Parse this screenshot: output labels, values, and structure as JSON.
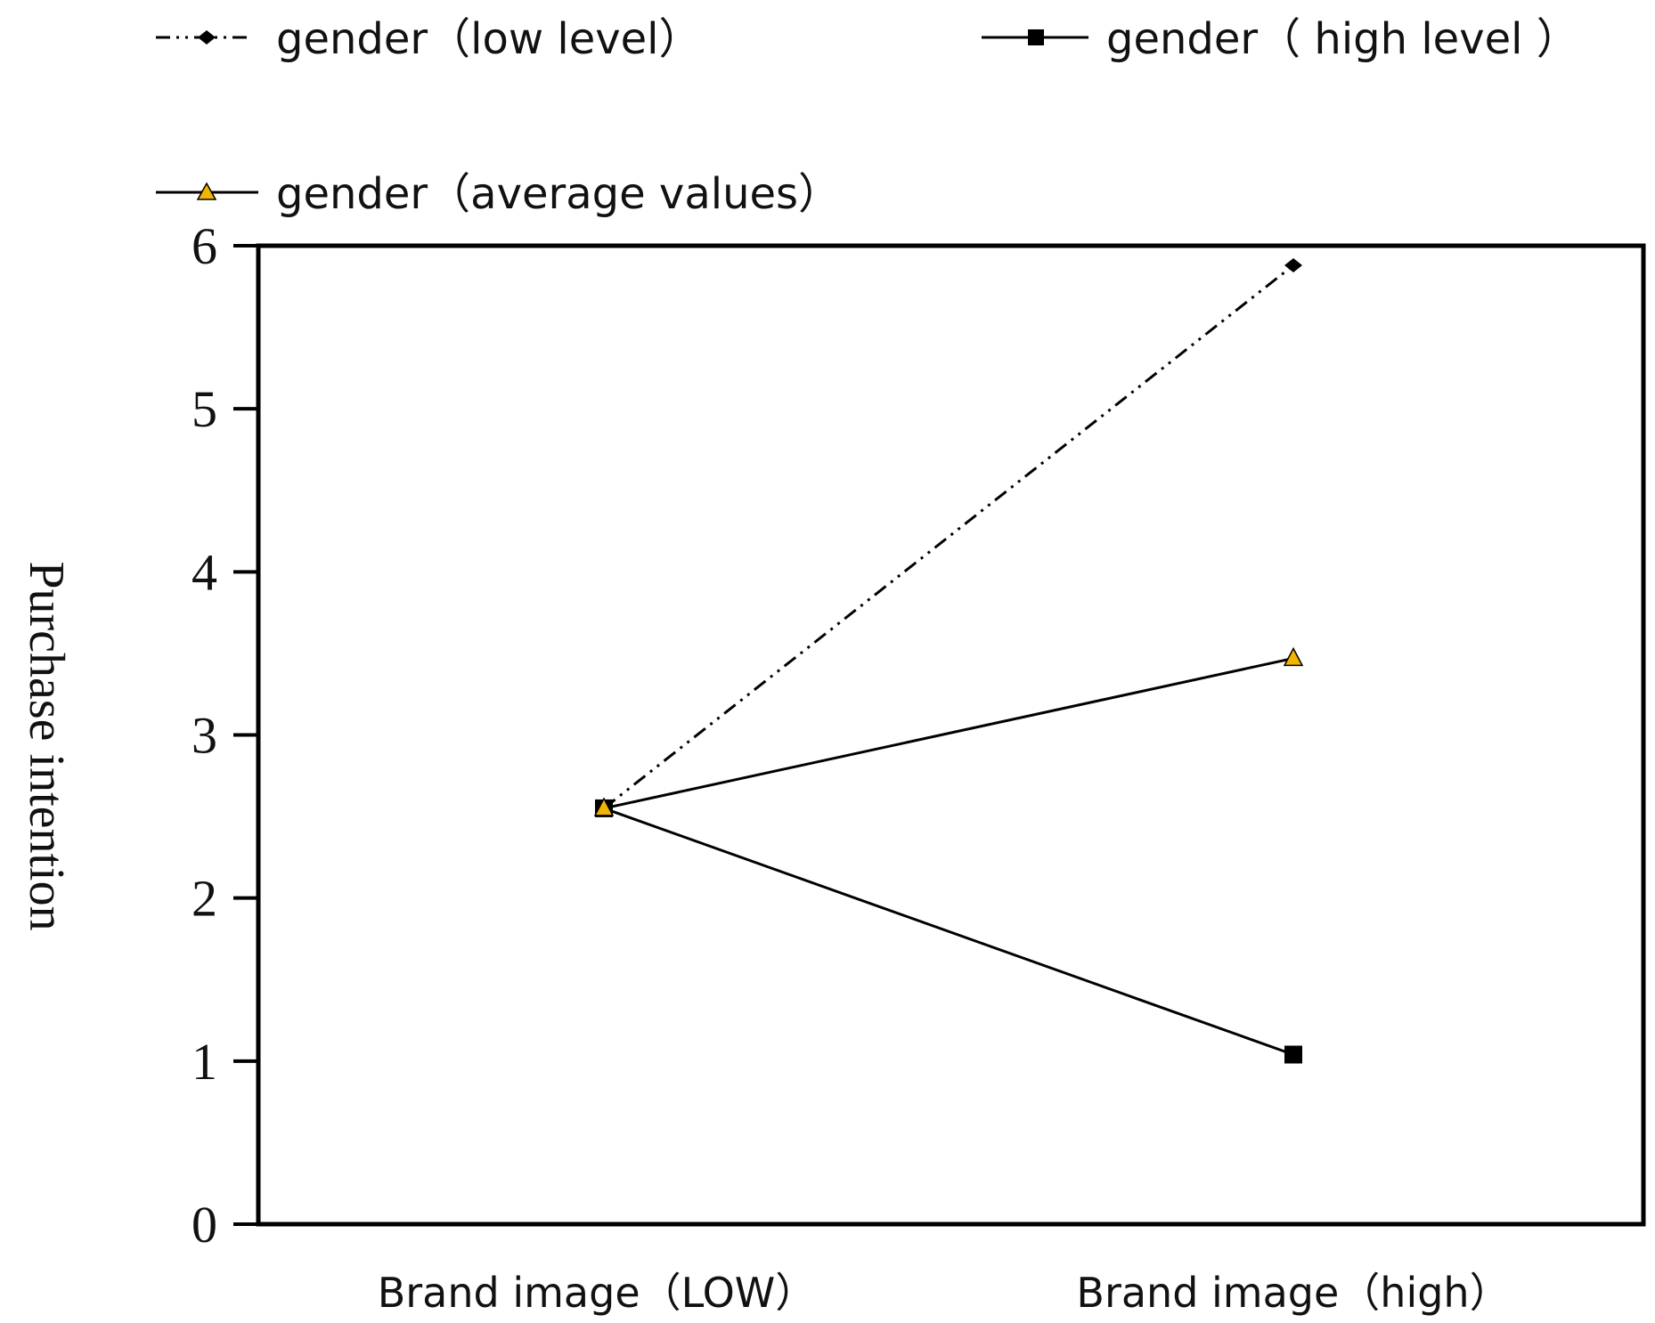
{
  "chart_data": {
    "type": "line",
    "categories": [
      "Brand image（LOW）",
      "Brand image（high）"
    ],
    "series": [
      {
        "name": "gender（low level）",
        "values": [
          2.55,
          5.88
        ],
        "color": "#000000",
        "line": "dash-dot-dot",
        "marker": "diamond"
      },
      {
        "name": "gender（ high level ）",
        "values": [
          2.55,
          1.04
        ],
        "color": "#000000",
        "line": "solid",
        "marker": "square"
      },
      {
        "name": "gender（average values）",
        "values": [
          2.55,
          3.47
        ],
        "color": "#000000",
        "marker_color": "#f2b400",
        "line": "solid",
        "marker": "triangle"
      }
    ],
    "ylabel": "Purchase intention",
    "xlabel": "",
    "ylim": [
      0,
      6
    ],
    "yticks": [
      "0",
      "1",
      "2",
      "3",
      "4",
      "5",
      "6"
    ],
    "grid": false,
    "legend_position": "top"
  }
}
